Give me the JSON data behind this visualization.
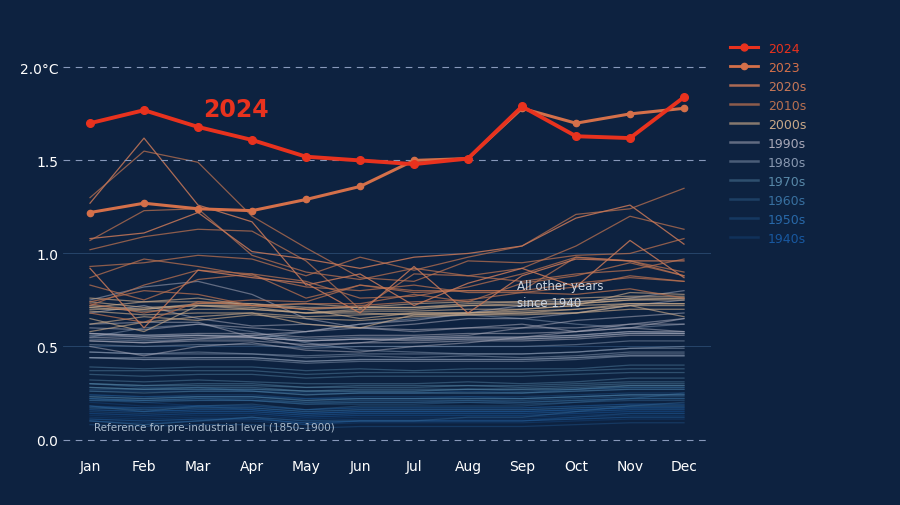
{
  "bg_color": "#0d2240",
  "text_color": "#ffffff",
  "ylim": [
    -0.08,
    2.15
  ],
  "months": [
    "Jan",
    "Feb",
    "Mar",
    "Apr",
    "May",
    "Jun",
    "Jul",
    "Aug",
    "Sep",
    "Oct",
    "Nov",
    "Dec"
  ],
  "data_2024": [
    1.7,
    1.77,
    1.68,
    1.61,
    1.52,
    1.5,
    1.48,
    1.51,
    1.79,
    1.63,
    1.62,
    1.84
  ],
  "data_2023": [
    1.22,
    1.27,
    1.24,
    1.23,
    1.29,
    1.36,
    1.5,
    1.51,
    1.78,
    1.7,
    1.75,
    1.78
  ],
  "color_2024": "#e8321e",
  "color_2023": "#d4704a",
  "decade_colors": {
    "2020s": "#c87858",
    "2010s": "#b87050",
    "2000s": "#c8a888",
    "1990s": "#a8a8b8",
    "1980s": "#8898b0",
    "1970s": "#5888a8",
    "1960s": "#3870a0",
    "1950s": "#2868a8",
    "1940s": "#1858a0"
  },
  "decade_alphas": {
    "2020s": 0.85,
    "2010s": 0.75,
    "2000s": 0.65,
    "1990s": 0.55,
    "1980s": 0.5,
    "1970s": 0.45,
    "1960s": 0.38,
    "1950s": 0.32,
    "1940s": 0.28
  },
  "historical_years": {
    "2020": [
      1.27,
      1.62,
      1.26,
      1.17,
      0.83,
      0.89,
      0.72,
      0.84,
      0.92,
      0.82,
      1.07,
      0.87
    ],
    "2021": [
      0.92,
      0.6,
      0.91,
      0.87,
      0.84,
      0.68,
      0.93,
      0.68,
      0.88,
      0.97,
      0.96,
      0.96
    ],
    "2022": [
      1.08,
      1.11,
      1.22,
      1.01,
      0.97,
      0.92,
      0.98,
      1.0,
      1.04,
      1.19,
      1.26,
      1.05
    ],
    "2019": [
      1.02,
      1.09,
      1.13,
      1.12,
      0.96,
      0.7,
      0.89,
      0.88,
      0.92,
      1.04,
      1.2,
      1.13
    ],
    "2018": [
      0.72,
      0.83,
      0.91,
      0.89,
      0.76,
      0.83,
      0.8,
      0.8,
      0.8,
      0.98,
      0.96,
      0.88
    ],
    "2017": [
      1.07,
      1.23,
      1.24,
      0.99,
      0.9,
      0.86,
      0.92,
      0.88,
      0.85,
      0.89,
      0.91,
      0.97
    ],
    "2016": [
      1.3,
      1.55,
      1.49,
      1.2,
      1.03,
      0.87,
      0.85,
      0.96,
      0.95,
      0.99,
      1.0,
      1.08
    ],
    "2015": [
      0.93,
      0.95,
      0.99,
      0.97,
      0.88,
      0.98,
      0.91,
      0.98,
      1.04,
      1.21,
      1.24,
      1.35
    ],
    "2014": [
      0.83,
      0.75,
      0.86,
      0.89,
      0.85,
      0.76,
      0.77,
      0.82,
      0.89,
      0.98,
      0.96,
      0.9
    ],
    "2013": [
      0.74,
      0.8,
      0.78,
      0.72,
      0.73,
      0.73,
      0.78,
      0.74,
      0.84,
      0.88,
      0.95,
      0.88
    ],
    "2012": [
      0.73,
      0.68,
      0.73,
      0.75,
      0.74,
      0.83,
      0.79,
      0.8,
      0.8,
      0.84,
      0.87,
      0.85
    ],
    "2011": [
      0.68,
      0.63,
      0.74,
      0.72,
      0.7,
      0.72,
      0.74,
      0.75,
      0.79,
      0.78,
      0.81,
      0.76
    ],
    "2010": [
      0.87,
      0.97,
      0.93,
      0.88,
      0.82,
      0.8,
      0.83,
      0.79,
      0.79,
      0.82,
      0.88,
      0.85
    ],
    "2009": [
      0.65,
      0.58,
      0.72,
      0.72,
      0.7,
      0.65,
      0.68,
      0.68,
      0.7,
      0.72,
      0.79,
      0.78
    ],
    "2008": [
      0.58,
      0.63,
      0.66,
      0.68,
      0.62,
      0.6,
      0.67,
      0.67,
      0.68,
      0.68,
      0.72,
      0.66
    ],
    "2007": [
      0.76,
      0.74,
      0.76,
      0.72,
      0.73,
      0.71,
      0.73,
      0.74,
      0.74,
      0.76,
      0.77,
      0.77
    ],
    "2006": [
      0.72,
      0.7,
      0.72,
      0.71,
      0.68,
      0.68,
      0.67,
      0.68,
      0.68,
      0.7,
      0.73,
      0.73
    ],
    "2005": [
      0.74,
      0.71,
      0.72,
      0.7,
      0.68,
      0.7,
      0.7,
      0.72,
      0.73,
      0.73,
      0.75,
      0.76
    ],
    "2004": [
      0.69,
      0.67,
      0.68,
      0.68,
      0.66,
      0.67,
      0.68,
      0.68,
      0.69,
      0.7,
      0.72,
      0.72
    ],
    "2003": [
      0.71,
      0.74,
      0.74,
      0.73,
      0.7,
      0.71,
      0.71,
      0.73,
      0.74,
      0.74,
      0.76,
      0.76
    ],
    "2002": [
      0.7,
      0.7,
      0.73,
      0.73,
      0.71,
      0.71,
      0.71,
      0.72,
      0.72,
      0.73,
      0.75,
      0.75
    ],
    "2001": [
      0.71,
      0.69,
      0.7,
      0.7,
      0.68,
      0.69,
      0.69,
      0.7,
      0.7,
      0.72,
      0.73,
      0.73
    ],
    "2000": [
      0.62,
      0.66,
      0.64,
      0.67,
      0.65,
      0.64,
      0.66,
      0.67,
      0.67,
      0.68,
      0.7,
      0.7
    ],
    "1999": [
      0.62,
      0.63,
      0.63,
      0.55,
      0.5,
      0.52,
      0.55,
      0.56,
      0.6,
      0.64,
      0.66,
      0.68
    ],
    "1998": [
      0.75,
      0.82,
      0.85,
      0.78,
      0.65,
      0.6,
      0.58,
      0.6,
      0.62,
      0.58,
      0.62,
      0.62
    ],
    "1997": [
      0.53,
      0.52,
      0.54,
      0.56,
      0.58,
      0.62,
      0.64,
      0.68,
      0.72,
      0.74,
      0.76,
      0.8
    ],
    "1996": [
      0.5,
      0.45,
      0.5,
      0.52,
      0.48,
      0.47,
      0.5,
      0.52,
      0.55,
      0.58,
      0.6,
      0.58
    ],
    "1995": [
      0.6,
      0.59,
      0.62,
      0.6,
      0.58,
      0.6,
      0.62,
      0.65,
      0.65,
      0.68,
      0.72,
      0.75
    ],
    "1994": [
      0.57,
      0.56,
      0.57,
      0.57,
      0.55,
      0.56,
      0.56,
      0.57,
      0.57,
      0.58,
      0.6,
      0.65
    ],
    "1993": [
      0.55,
      0.54,
      0.55,
      0.55,
      0.53,
      0.54,
      0.54,
      0.55,
      0.55,
      0.56,
      0.58,
      0.58
    ],
    "1992": [
      0.53,
      0.52,
      0.53,
      0.53,
      0.51,
      0.52,
      0.52,
      0.53,
      0.53,
      0.54,
      0.56,
      0.56
    ],
    "1991": [
      0.57,
      0.55,
      0.56,
      0.55,
      0.53,
      0.54,
      0.53,
      0.54,
      0.54,
      0.55,
      0.57,
      0.57
    ],
    "1990": [
      0.68,
      0.72,
      0.65,
      0.61,
      0.62,
      0.6,
      0.59,
      0.6,
      0.6,
      0.6,
      0.62,
      0.65
    ],
    "1989": [
      0.56,
      0.55,
      0.56,
      0.55,
      0.53,
      0.54,
      0.54,
      0.54,
      0.54,
      0.55,
      0.57,
      0.57
    ],
    "1988": [
      0.57,
      0.56,
      0.56,
      0.56,
      0.54,
      0.55,
      0.55,
      0.55,
      0.55,
      0.56,
      0.58,
      0.57
    ],
    "1987": [
      0.54,
      0.53,
      0.54,
      0.54,
      0.58,
      0.62,
      0.65,
      0.67,
      0.65,
      0.62,
      0.6,
      0.62
    ],
    "1986": [
      0.51,
      0.5,
      0.51,
      0.51,
      0.49,
      0.5,
      0.5,
      0.5,
      0.5,
      0.51,
      0.53,
      0.53
    ],
    "1985": [
      0.47,
      0.46,
      0.47,
      0.46,
      0.45,
      0.46,
      0.46,
      0.46,
      0.46,
      0.47,
      0.49,
      0.49
    ],
    "1984": [
      0.44,
      0.43,
      0.44,
      0.44,
      0.42,
      0.43,
      0.43,
      0.43,
      0.43,
      0.44,
      0.46,
      0.46
    ],
    "1983": [
      0.55,
      0.6,
      0.62,
      0.58,
      0.52,
      0.48,
      0.47,
      0.46,
      0.46,
      0.47,
      0.49,
      0.5
    ],
    "1982": [
      0.44,
      0.43,
      0.43,
      0.43,
      0.41,
      0.42,
      0.42,
      0.42,
      0.42,
      0.43,
      0.45,
      0.45
    ],
    "1981": [
      0.47,
      0.46,
      0.46,
      0.46,
      0.44,
      0.45,
      0.44,
      0.45,
      0.44,
      0.45,
      0.47,
      0.47
    ],
    "1980": [
      0.44,
      0.44,
      0.44,
      0.44,
      0.42,
      0.43,
      0.43,
      0.43,
      0.43,
      0.44,
      0.45,
      0.45
    ],
    "1979": [
      0.37,
      0.37,
      0.37,
      0.37,
      0.35,
      0.36,
      0.36,
      0.36,
      0.36,
      0.37,
      0.38,
      0.38
    ],
    "1978": [
      0.35,
      0.34,
      0.35,
      0.35,
      0.33,
      0.34,
      0.34,
      0.34,
      0.34,
      0.35,
      0.36,
      0.36
    ],
    "1977": [
      0.39,
      0.38,
      0.39,
      0.39,
      0.37,
      0.38,
      0.37,
      0.38,
      0.38,
      0.38,
      0.4,
      0.4
    ],
    "1976": [
      0.3,
      0.29,
      0.3,
      0.3,
      0.28,
      0.29,
      0.29,
      0.29,
      0.29,
      0.3,
      0.31,
      0.31
    ],
    "1975": [
      0.28,
      0.27,
      0.28,
      0.28,
      0.26,
      0.27,
      0.27,
      0.27,
      0.27,
      0.28,
      0.29,
      0.29
    ],
    "1974": [
      0.23,
      0.22,
      0.23,
      0.23,
      0.21,
      0.22,
      0.22,
      0.22,
      0.22,
      0.23,
      0.24,
      0.24
    ],
    "1973": [
      0.32,
      0.31,
      0.32,
      0.31,
      0.3,
      0.3,
      0.3,
      0.31,
      0.3,
      0.31,
      0.33,
      0.33
    ],
    "1972": [
      0.28,
      0.27,
      0.27,
      0.27,
      0.26,
      0.26,
      0.26,
      0.27,
      0.27,
      0.27,
      0.29,
      0.29
    ],
    "1971": [
      0.26,
      0.25,
      0.26,
      0.26,
      0.24,
      0.25,
      0.25,
      0.25,
      0.25,
      0.26,
      0.27,
      0.27
    ],
    "1970": [
      0.3,
      0.29,
      0.29,
      0.29,
      0.28,
      0.28,
      0.28,
      0.29,
      0.28,
      0.29,
      0.3,
      0.3
    ],
    "1969": [
      0.27,
      0.27,
      0.27,
      0.27,
      0.26,
      0.26,
      0.26,
      0.27,
      0.26,
      0.27,
      0.28,
      0.28
    ],
    "1968": [
      0.18,
      0.15,
      0.18,
      0.19,
      0.16,
      0.18,
      0.18,
      0.18,
      0.18,
      0.2,
      0.22,
      0.25
    ],
    "1967": [
      0.22,
      0.21,
      0.22,
      0.21,
      0.2,
      0.2,
      0.2,
      0.21,
      0.2,
      0.21,
      0.22,
      0.22
    ],
    "1966": [
      0.21,
      0.21,
      0.21,
      0.21,
      0.19,
      0.2,
      0.2,
      0.2,
      0.2,
      0.21,
      0.22,
      0.22
    ],
    "1965": [
      0.1,
      0.08,
      0.1,
      0.12,
      0.1,
      0.1,
      0.1,
      0.12,
      0.12,
      0.15,
      0.18,
      0.2
    ],
    "1964": [
      0.17,
      0.16,
      0.17,
      0.17,
      0.15,
      0.16,
      0.16,
      0.16,
      0.16,
      0.17,
      0.18,
      0.18
    ],
    "1963": [
      0.21,
      0.2,
      0.21,
      0.21,
      0.19,
      0.19,
      0.19,
      0.2,
      0.19,
      0.2,
      0.21,
      0.21
    ],
    "1962": [
      0.22,
      0.21,
      0.22,
      0.22,
      0.2,
      0.21,
      0.21,
      0.21,
      0.21,
      0.22,
      0.23,
      0.23
    ],
    "1961": [
      0.3,
      0.28,
      0.28,
      0.26,
      0.24,
      0.25,
      0.25,
      0.25,
      0.25,
      0.27,
      0.28,
      0.28
    ],
    "1960": [
      0.23,
      0.22,
      0.23,
      0.23,
      0.21,
      0.22,
      0.22,
      0.22,
      0.22,
      0.23,
      0.24,
      0.24
    ],
    "1959": [
      0.24,
      0.23,
      0.23,
      0.23,
      0.22,
      0.22,
      0.22,
      0.23,
      0.22,
      0.23,
      0.24,
      0.24
    ],
    "1958": [
      0.26,
      0.26,
      0.26,
      0.26,
      0.25,
      0.25,
      0.25,
      0.26,
      0.25,
      0.26,
      0.27,
      0.27
    ],
    "1957": [
      0.24,
      0.23,
      0.24,
      0.24,
      0.22,
      0.23,
      0.23,
      0.23,
      0.23,
      0.24,
      0.25,
      0.25
    ],
    "1956": [
      0.1,
      0.08,
      0.1,
      0.12,
      0.08,
      0.1,
      0.1,
      0.1,
      0.1,
      0.12,
      0.14,
      0.14
    ],
    "1955": [
      0.15,
      0.14,
      0.15,
      0.15,
      0.13,
      0.14,
      0.14,
      0.14,
      0.14,
      0.15,
      0.16,
      0.16
    ],
    "1954": [
      0.11,
      0.1,
      0.11,
      0.11,
      0.09,
      0.1,
      0.1,
      0.1,
      0.1,
      0.11,
      0.12,
      0.12
    ],
    "1953": [
      0.18,
      0.17,
      0.18,
      0.18,
      0.16,
      0.17,
      0.17,
      0.17,
      0.17,
      0.18,
      0.19,
      0.19
    ],
    "1952": [
      0.16,
      0.15,
      0.16,
      0.16,
      0.14,
      0.15,
      0.15,
      0.15,
      0.15,
      0.16,
      0.17,
      0.17
    ],
    "1951": [
      0.17,
      0.17,
      0.17,
      0.17,
      0.15,
      0.16,
      0.16,
      0.16,
      0.16,
      0.17,
      0.18,
      0.18
    ],
    "1950": [
      0.08,
      0.07,
      0.08,
      0.08,
      0.06,
      0.07,
      0.07,
      0.07,
      0.07,
      0.08,
      0.09,
      0.09
    ],
    "1949": [
      0.16,
      0.15,
      0.16,
      0.16,
      0.14,
      0.15,
      0.15,
      0.15,
      0.15,
      0.16,
      0.17,
      0.17
    ],
    "1948": [
      0.14,
      0.13,
      0.14,
      0.14,
      0.12,
      0.13,
      0.13,
      0.13,
      0.13,
      0.14,
      0.15,
      0.15
    ],
    "1947": [
      0.2,
      0.18,
      0.18,
      0.16,
      0.14,
      0.15,
      0.15,
      0.15,
      0.15,
      0.16,
      0.17,
      0.17
    ],
    "1946": [
      0.13,
      0.12,
      0.13,
      0.13,
      0.11,
      0.12,
      0.12,
      0.12,
      0.12,
      0.13,
      0.14,
      0.14
    ],
    "1945": [
      0.1,
      0.09,
      0.1,
      0.1,
      0.08,
      0.09,
      0.09,
      0.09,
      0.09,
      0.1,
      0.11,
      0.11
    ],
    "1944": [
      0.18,
      0.16,
      0.15,
      0.15,
      0.13,
      0.14,
      0.14,
      0.14,
      0.14,
      0.15,
      0.16,
      0.16
    ],
    "1943": [
      0.14,
      0.13,
      0.14,
      0.14,
      0.12,
      0.13,
      0.13,
      0.13,
      0.13,
      0.14,
      0.15,
      0.15
    ],
    "1942": [
      0.11,
      0.1,
      0.11,
      0.11,
      0.09,
      0.1,
      0.1,
      0.1,
      0.1,
      0.11,
      0.12,
      0.12
    ],
    "1941": [
      0.22,
      0.2,
      0.18,
      0.18,
      0.16,
      0.17,
      0.17,
      0.17,
      0.17,
      0.18,
      0.19,
      0.19
    ],
    "1940": [
      0.12,
      0.11,
      0.12,
      0.12,
      0.1,
      0.11,
      0.11,
      0.11,
      0.11,
      0.12,
      0.13,
      0.13
    ]
  },
  "legend_items": [
    "2024",
    "2023",
    "2020s",
    "2010s",
    "2000s",
    "1990s",
    "1980s",
    "1970s",
    "1960s",
    "1950s",
    "1940s"
  ],
  "legend_text_colors": [
    "#e8321e",
    "#d4704a",
    "#c87858",
    "#b87050",
    "#c8a888",
    "#a8a8b8",
    "#8898b0",
    "#5888a8",
    "#3870a0",
    "#2868a8",
    "#1858a0"
  ]
}
